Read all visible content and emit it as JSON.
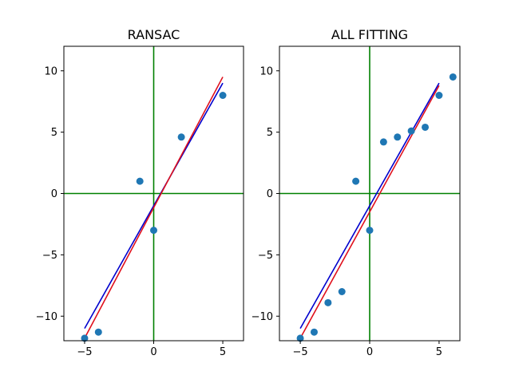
{
  "colors": {
    "points": "#1f77b4",
    "axis_lines": "#008000",
    "line_blue": "#0000cd",
    "line_red": "#e0101c",
    "frame": "#000000"
  },
  "chart_data": [
    {
      "type": "scatter",
      "title": "RANSAC",
      "xlabel": "",
      "ylabel": "",
      "xlim": [
        -6.5,
        6.5
      ],
      "ylim": [
        -12,
        12
      ],
      "xticks": [
        -5,
        0,
        5
      ],
      "yticks": [
        -10,
        -5,
        0,
        5,
        10
      ],
      "xtick_labels": [
        "−5",
        "0",
        "5"
      ],
      "ytick_labels": [
        "−10",
        "−5",
        "0",
        "5",
        "10"
      ],
      "reference_lines": {
        "x": 0,
        "y": 0
      },
      "points": [
        {
          "x": -5,
          "y": -11.8
        },
        {
          "x": -4,
          "y": -11.3
        },
        {
          "x": -1,
          "y": 1.0
        },
        {
          "x": 0,
          "y": -3.0
        },
        {
          "x": 2,
          "y": 4.6
        },
        {
          "x": 5,
          "y": 8.0
        }
      ],
      "lines": [
        {
          "name": "blue fit",
          "color": "#0000cd",
          "x": [
            -5,
            5
          ],
          "y": [
            -11.0,
            9.0
          ]
        },
        {
          "name": "red fit",
          "color": "#e0101c",
          "x": [
            -5,
            5
          ],
          "y": [
            -11.8,
            9.5
          ]
        }
      ]
    },
    {
      "type": "scatter",
      "title": "ALL FITTING",
      "xlabel": "",
      "ylabel": "",
      "xlim": [
        -6.5,
        6.5
      ],
      "ylim": [
        -12,
        12
      ],
      "xticks": [
        -5,
        0,
        5
      ],
      "yticks": [
        -10,
        -5,
        0,
        5,
        10
      ],
      "xtick_labels": [
        "−5",
        "0",
        "5"
      ],
      "ytick_labels": [
        "−10",
        "−5",
        "0",
        "5",
        "10"
      ],
      "reference_lines": {
        "x": 0,
        "y": 0
      },
      "points": [
        {
          "x": -5,
          "y": -11.8
        },
        {
          "x": -4,
          "y": -11.3
        },
        {
          "x": -3,
          "y": -8.9
        },
        {
          "x": -2,
          "y": -8.0
        },
        {
          "x": -1,
          "y": 1.0
        },
        {
          "x": 0,
          "y": -3.0
        },
        {
          "x": 1,
          "y": 4.2
        },
        {
          "x": 2,
          "y": 4.6
        },
        {
          "x": 3,
          "y": 5.1
        },
        {
          "x": 4,
          "y": 5.4
        },
        {
          "x": 5,
          "y": 8.0
        },
        {
          "x": 6,
          "y": 9.5
        }
      ],
      "lines": [
        {
          "name": "blue fit",
          "color": "#0000cd",
          "x": [
            -5,
            5
          ],
          "y": [
            -11.0,
            9.0
          ]
        },
        {
          "name": "red fit",
          "color": "#e0101c",
          "x": [
            -5,
            5
          ],
          "y": [
            -11.8,
            8.8
          ]
        }
      ]
    }
  ]
}
